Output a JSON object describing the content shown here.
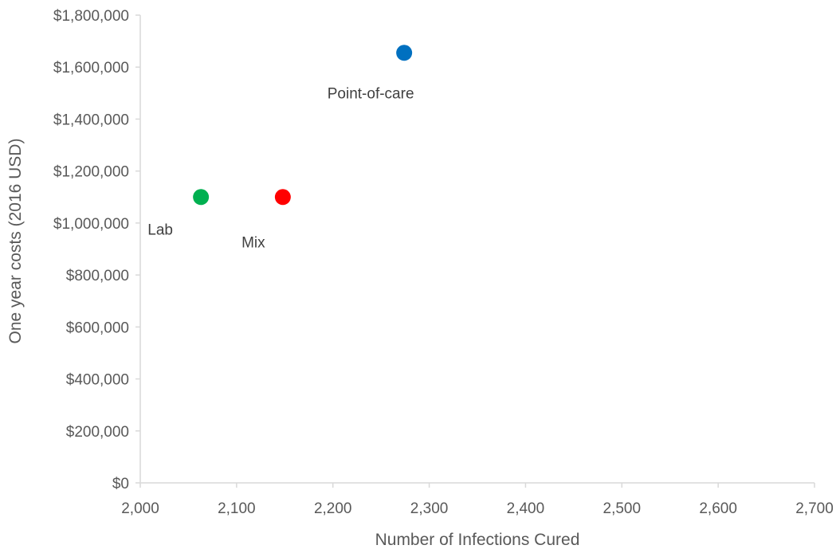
{
  "chart_data": {
    "type": "scatter",
    "title": "",
    "xlabel": "Number of Infections Cured",
    "ylabel": "One year costs (2016 USD)",
    "xlim": [
      2000,
      2700
    ],
    "ylim": [
      0,
      1800000
    ],
    "x_ticks": [
      2000,
      2100,
      2200,
      2300,
      2400,
      2500,
      2600,
      2700
    ],
    "x_tick_labels": [
      "2,000",
      "2,100",
      "2,200",
      "2,300",
      "2,400",
      "2,500",
      "2,600",
      "2,700"
    ],
    "y_ticks": [
      0,
      200000,
      400000,
      600000,
      800000,
      1000000,
      1200000,
      1400000,
      1600000,
      1800000
    ],
    "y_tick_labels": [
      "$0",
      "$200,000",
      "$400,000",
      "$600,000",
      "$800,000",
      "$1,000,000",
      "$1,200,000",
      "$1,400,000",
      "$1,600,000",
      "$1,800,000"
    ],
    "grid": false,
    "legend": "none",
    "points": [
      {
        "label": "Lab",
        "x": 2063,
        "y": 1100000,
        "color": "#00b050"
      },
      {
        "label": "Mix",
        "x": 2148,
        "y": 1100000,
        "color": "#ff0000"
      },
      {
        "label": "Point-of-care",
        "x": 2274,
        "y": 1655000,
        "color": "#0070c0"
      }
    ]
  }
}
